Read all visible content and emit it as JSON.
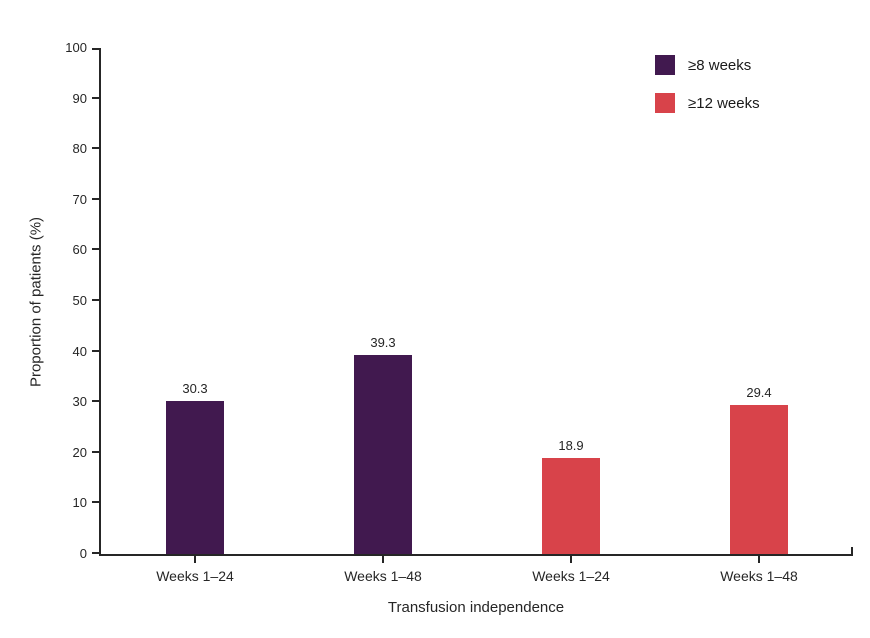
{
  "chart_data": {
    "type": "bar",
    "title": "",
    "xlabel": "Transfusion independence",
    "ylabel": "Proportion of patients (%)",
    "ylim": [
      0,
      100
    ],
    "ytick_interval": 10,
    "ytick_labels": [
      "0",
      "10",
      "20",
      "30",
      "40",
      "50",
      "60",
      "70",
      "80",
      "90",
      "100"
    ],
    "categories": [
      "Weeks 1–24",
      "Weeks 1–48",
      "Weeks 1–24",
      "Weeks 1–48"
    ],
    "series": [
      {
        "name": "≥8 weeks",
        "color": "#41194F",
        "bars": [
          {
            "category_index": 0,
            "value": 30.3,
            "label": "30.3"
          },
          {
            "category_index": 1,
            "value": 39.3,
            "label": "39.3"
          }
        ]
      },
      {
        "name": "≥12 weeks",
        "color": "#D8434A",
        "bars": [
          {
            "category_index": 2,
            "value": 18.9,
            "label": "18.9"
          },
          {
            "category_index": 3,
            "value": 29.4,
            "label": "29.4"
          }
        ]
      }
    ],
    "data_labels": true,
    "grid": false,
    "legend_position": "top-right",
    "axis_color": "#262626",
    "text_color": "#262626",
    "background_color": "#FFFFFF"
  }
}
